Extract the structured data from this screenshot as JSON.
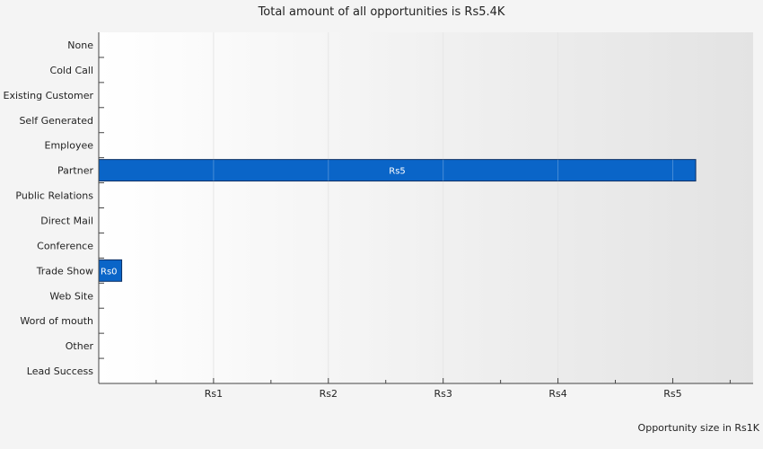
{
  "title": "Total amount of all opportunities is Rs5.4K",
  "units_label": "Opportunity size in Rs1K",
  "colors": {
    "bar": "#0a65c8",
    "bar_border": "#0b2f63",
    "label_on_bar": "#ffffff",
    "background": "#f4f4f4"
  },
  "chart_data": {
    "type": "bar",
    "orientation": "horizontal",
    "title": "Total amount of all opportunities is Rs5.4K",
    "xlabel": "Opportunity size in Rs1K",
    "ylabel": "",
    "categories": [
      "None",
      "Cold Call",
      "Existing Customer",
      "Self Generated",
      "Employee",
      "Partner",
      "Public Relations",
      "Direct Mail",
      "Conference",
      "Trade Show",
      "Web Site",
      "Word of mouth",
      "Other",
      "Lead Success"
    ],
    "values": [
      0,
      0,
      0,
      0,
      0,
      5.2,
      0,
      0,
      0,
      0.2,
      0,
      0,
      0,
      0
    ],
    "data_labels": [
      "",
      "",
      "",
      "",
      "",
      "Rs5",
      "",
      "",
      "",
      "Rs0",
      "",
      "",
      "",
      ""
    ],
    "xlim": [
      0,
      5.7
    ],
    "x_ticks": [
      1,
      2,
      3,
      4,
      5
    ],
    "x_tick_labels": [
      "Rs1",
      "Rs2",
      "Rs3",
      "Rs4",
      "Rs5"
    ],
    "grid": true,
    "legend": "none"
  }
}
